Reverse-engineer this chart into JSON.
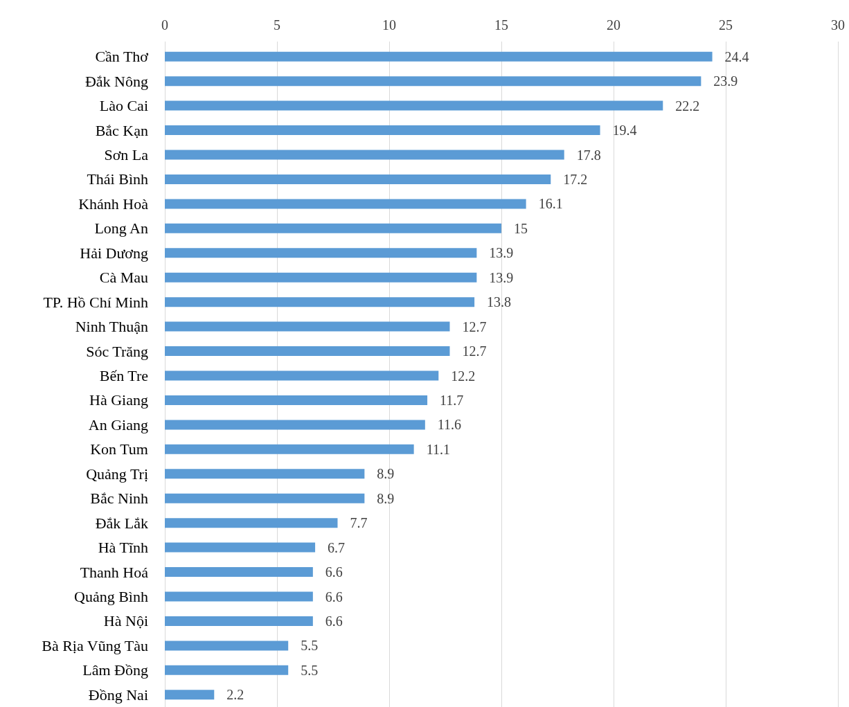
{
  "chart_data": {
    "type": "bar",
    "orientation": "horizontal",
    "categories": [
      "Cần Thơ",
      "Đắk Nông",
      "Lào Cai",
      "Bắc Kạn",
      "Sơn La",
      "Thái Bình",
      "Khánh Hoà",
      "Long An",
      "Hải Dương",
      "Cà Mau",
      "TP. Hồ Chí Minh",
      "Ninh Thuận",
      "Sóc Trăng",
      "Bến Tre",
      "Hà Giang",
      "An Giang",
      "Kon Tum",
      "Quảng Trị",
      "Bắc Ninh",
      "Đắk Lắk",
      "Hà Tĩnh",
      "Thanh Hoá",
      "Quảng Bình",
      "Hà Nội",
      "Bà Rịa Vũng Tàu",
      "Lâm Đồng",
      "Đồng Nai"
    ],
    "values": [
      24.4,
      23.9,
      22.2,
      19.4,
      17.8,
      17.2,
      16.1,
      15,
      13.9,
      13.9,
      13.8,
      12.7,
      12.7,
      12.2,
      11.7,
      11.6,
      11.1,
      8.9,
      8.9,
      7.7,
      6.7,
      6.6,
      6.6,
      6.6,
      5.5,
      5.5,
      2.2
    ],
    "color": "#5b9bd5",
    "xlim": [
      0,
      30
    ],
    "xticks": [
      0,
      5,
      10,
      15,
      20,
      25,
      30
    ],
    "grid": "x",
    "data_labels": true
  }
}
